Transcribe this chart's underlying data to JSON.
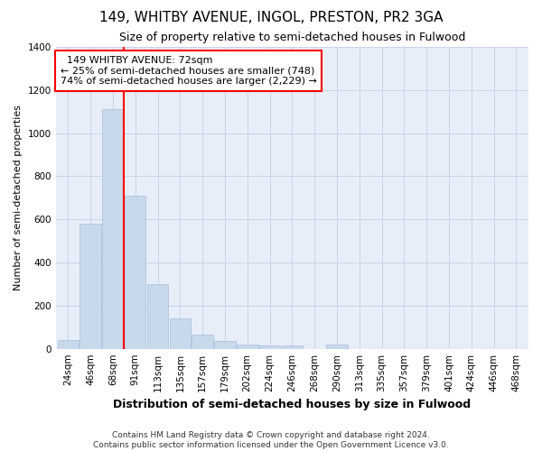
{
  "title1": "149, WHITBY AVENUE, INGOL, PRESTON, PR2 3GA",
  "title2": "Size of property relative to semi-detached houses in Fulwood",
  "xlabel": "Distribution of semi-detached houses by size in Fulwood",
  "ylabel": "Number of semi-detached properties",
  "footer1": "Contains HM Land Registry data © Crown copyright and database right 2024.",
  "footer2": "Contains public sector information licensed under the Open Government Licence v3.0.",
  "annotation_line1": "149 WHITBY AVENUE: 72sqm",
  "annotation_line2": "← 25% of semi-detached houses are smaller (748)",
  "annotation_line3": "74% of semi-detached houses are larger (2,229) →",
  "categories": [
    "24sqm",
    "46sqm",
    "68sqm",
    "91sqm",
    "113sqm",
    "135sqm",
    "157sqm",
    "179sqm",
    "202sqm",
    "224sqm",
    "246sqm",
    "268sqm",
    "290sqm",
    "313sqm",
    "335sqm",
    "357sqm",
    "379sqm",
    "401sqm",
    "424sqm",
    "446sqm",
    "468sqm"
  ],
  "values": [
    40,
    580,
    1110,
    710,
    300,
    140,
    65,
    35,
    20,
    15,
    15,
    0,
    20,
    0,
    0,
    0,
    0,
    0,
    0,
    0,
    0
  ],
  "bar_color": "#c9d9ec",
  "bar_edge_color": "#afc4dc",
  "vline_color": "red",
  "vline_index": 2,
  "ylim": [
    0,
    1400
  ],
  "yticks": [
    0,
    200,
    400,
    600,
    800,
    1000,
    1200,
    1400
  ],
  "grid_color": "#c8d4e8",
  "background_color": "#e8eef8",
  "box_edge_color": "red",
  "title1_fontsize": 11,
  "title2_fontsize": 9,
  "ylabel_fontsize": 8,
  "xlabel_fontsize": 9,
  "tick_fontsize": 7.5,
  "annotation_fontsize": 8,
  "footer_fontsize": 6.5
}
